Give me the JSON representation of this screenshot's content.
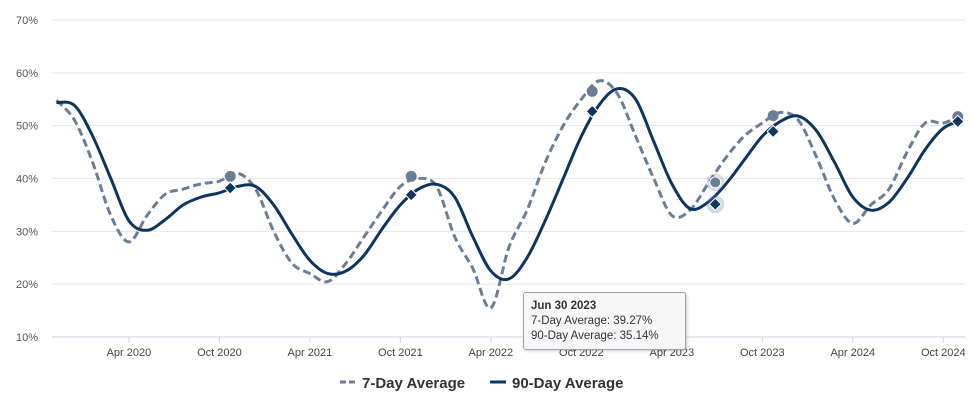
{
  "chart_data": {
    "type": "line",
    "title": "",
    "xlabel": "",
    "ylabel": "",
    "ylim": [
      10,
      70
    ],
    "xlim": [
      2019.825,
      2024.87
    ],
    "y_ticks": [
      "10%",
      "20%",
      "30%",
      "40%",
      "50%",
      "60%",
      "70%"
    ],
    "y_tick_values": [
      10,
      20,
      30,
      40,
      50,
      60,
      70
    ],
    "x_ticks": [
      "Apr 2020",
      "Oct 2020",
      "Apr 2021",
      "Oct 2021",
      "Apr 2022",
      "Oct 2022",
      "Apr 2023",
      "Oct 2023",
      "Apr 2024",
      "Oct 2024"
    ],
    "x_tick_values": [
      2020.25,
      2020.75,
      2021.25,
      2021.75,
      2022.25,
      2022.75,
      2023.25,
      2023.75,
      2024.25,
      2024.75
    ],
    "grid": true,
    "legend_position": "bottom-center",
    "x": [
      2019.85,
      2019.95,
      2020.05,
      2020.15,
      2020.25,
      2020.35,
      2020.45,
      2020.55,
      2020.65,
      2020.75,
      2020.85,
      2020.95,
      2021.05,
      2021.15,
      2021.25,
      2021.35,
      2021.45,
      2021.55,
      2021.65,
      2021.75,
      2021.85,
      2021.95,
      2022.05,
      2022.15,
      2022.25,
      2022.35,
      2022.45,
      2022.55,
      2022.65,
      2022.75,
      2022.85,
      2022.95,
      2023.05,
      2023.15,
      2023.25,
      2023.35,
      2023.45,
      2023.55,
      2023.65,
      2023.75,
      2023.85,
      2023.95,
      2024.05,
      2024.15,
      2024.25,
      2024.35,
      2024.45,
      2024.55,
      2024.65,
      2024.75,
      2024.85
    ],
    "series": [
      {
        "name": "7-Day Average",
        "color": "#6a7f96",
        "style": "dashed",
        "values": [
          54.8,
          51,
          43,
          33,
          28,
          33,
          37,
          38,
          39,
          39.5,
          41,
          38,
          30,
          24,
          22,
          20.5,
          24,
          29,
          34,
          38.5,
          40,
          38.5,
          29,
          23,
          15.5,
          27,
          34,
          43,
          50,
          55,
          58.5,
          56,
          48,
          40,
          33,
          34,
          39,
          44,
          48,
          50.5,
          52.5,
          51,
          44,
          36,
          31.5,
          35,
          38,
          45,
          50.5,
          50.5,
          52
        ],
        "markers": [
          {
            "x": 2020.81,
            "y": 40.4
          },
          {
            "x": 2021.81,
            "y": 40.4
          },
          {
            "x": 2022.81,
            "y": 56.5
          },
          {
            "x": 2023.49,
            "y": 39.27
          },
          {
            "x": 2023.81,
            "y": 51.9
          },
          {
            "x": 2024.83,
            "y": 51.7
          }
        ]
      },
      {
        "name": "90-Day Average",
        "color": "#0c3560",
        "style": "solid",
        "values": [
          54.4,
          53.8,
          48,
          40,
          32,
          30.2,
          32.2,
          35,
          36.5,
          37.3,
          38.5,
          38.5,
          35,
          29.5,
          24.5,
          22,
          22.5,
          25.5,
          30.5,
          35,
          38,
          38.9,
          36.5,
          29,
          22.5,
          21,
          25,
          32,
          40,
          48,
          54,
          57,
          55,
          47,
          39,
          34.3,
          35.5,
          39,
          43.5,
          48,
          50.8,
          51.8,
          49,
          43,
          36.5,
          34,
          35.5,
          40,
          45.5,
          49.5,
          51
        ],
        "markers": [
          {
            "x": 2020.81,
            "y": 38.2
          },
          {
            "x": 2021.81,
            "y": 36.9
          },
          {
            "x": 2022.81,
            "y": 52.7
          },
          {
            "x": 2023.49,
            "y": 35.14
          },
          {
            "x": 2023.81,
            "y": 48.9
          },
          {
            "x": 2024.83,
            "y": 50.8
          }
        ]
      }
    ]
  },
  "tooltip": {
    "date": "Jun 30 2023",
    "line1": "7-Day Average: 39.27%",
    "line2": "90-Day Average: 35.14%"
  }
}
